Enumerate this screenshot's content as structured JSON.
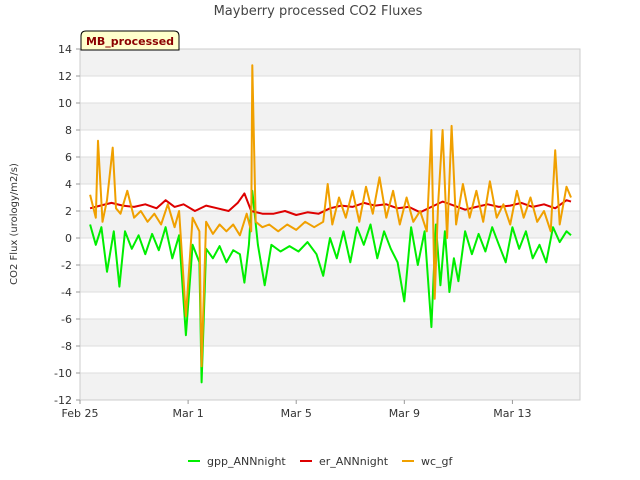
{
  "chart_data": {
    "type": "line",
    "title": "Mayberry processed CO2 Fluxes",
    "ylabel": "CO2 Flux (urology/m2/s)",
    "xlabel": "",
    "badge": "MB_processed",
    "ylim": [
      -12,
      14
    ],
    "yticks": [
      -12,
      -10,
      -8,
      -6,
      -4,
      -2,
      0,
      2,
      4,
      6,
      8,
      10,
      12,
      14
    ],
    "xlim": [
      "2021-02-25",
      "2021-03-15T12:00"
    ],
    "xticks": [
      {
        "label": "Feb 25",
        "date": "2021-02-25"
      },
      {
        "label": "Mar 1",
        "date": "2021-03-01"
      },
      {
        "label": "Mar 5",
        "date": "2021-03-05"
      },
      {
        "label": "Mar 9",
        "date": "2021-03-09"
      },
      {
        "label": "Mar 13",
        "date": "2021-03-13"
      }
    ],
    "grid": true,
    "legend_position": "bottom",
    "series": [
      {
        "name": "gpp_ANNnight",
        "color": "#00ee00",
        "points": [
          [
            "2021-02-25T09:00",
            1.0
          ],
          [
            "2021-02-25T14:00",
            -0.5
          ],
          [
            "2021-02-25T19:00",
            0.8
          ],
          [
            "2021-02-26T00:00",
            -2.5
          ],
          [
            "2021-02-26T06:00",
            0.5
          ],
          [
            "2021-02-26T11:00",
            -3.6
          ],
          [
            "2021-02-26T16:00",
            0.5
          ],
          [
            "2021-02-26T22:00",
            -0.8
          ],
          [
            "2021-02-27T04:00",
            0.2
          ],
          [
            "2021-02-27T10:00",
            -1.2
          ],
          [
            "2021-02-27T16:00",
            0.3
          ],
          [
            "2021-02-27T22:00",
            -0.9
          ],
          [
            "2021-02-28T04:00",
            0.8
          ],
          [
            "2021-02-28T10:00",
            -1.5
          ],
          [
            "2021-02-28T16:00",
            0.2
          ],
          [
            "2021-02-28T22:00",
            -7.2
          ],
          [
            "2021-03-01T04:00",
            -0.5
          ],
          [
            "2021-03-01T10:00",
            -1.8
          ],
          [
            "2021-03-01T12:00",
            -10.7
          ],
          [
            "2021-03-01T16:00",
            -0.8
          ],
          [
            "2021-03-01T22:00",
            -1.5
          ],
          [
            "2021-03-02T04:00",
            -0.6
          ],
          [
            "2021-03-02T10:00",
            -1.8
          ],
          [
            "2021-03-02T16:00",
            -0.9
          ],
          [
            "2021-03-02T22:00",
            -1.2
          ],
          [
            "2021-03-03T02:00",
            -3.3
          ],
          [
            "2021-03-03T06:00",
            -0.5
          ],
          [
            "2021-03-03T09:00",
            3.5
          ],
          [
            "2021-03-03T14:00",
            -0.5
          ],
          [
            "2021-03-03T20:00",
            -3.5
          ],
          [
            "2021-03-04T02:00",
            -0.5
          ],
          [
            "2021-03-04T10:00",
            -1.0
          ],
          [
            "2021-03-04T18:00",
            -0.6
          ],
          [
            "2021-03-05T02:00",
            -1.0
          ],
          [
            "2021-03-05T10:00",
            -0.3
          ],
          [
            "2021-03-05T18:00",
            -1.2
          ],
          [
            "2021-03-06T00:00",
            -2.8
          ],
          [
            "2021-03-06T06:00",
            0.0
          ],
          [
            "2021-03-06T12:00",
            -1.5
          ],
          [
            "2021-03-06T18:00",
            0.5
          ],
          [
            "2021-03-07T00:00",
            -1.8
          ],
          [
            "2021-03-07T06:00",
            0.8
          ],
          [
            "2021-03-07T12:00",
            -0.5
          ],
          [
            "2021-03-07T18:00",
            1.0
          ],
          [
            "2021-03-08T00:00",
            -1.5
          ],
          [
            "2021-03-08T06:00",
            0.5
          ],
          [
            "2021-03-08T12:00",
            -0.8
          ],
          [
            "2021-03-08T18:00",
            -1.8
          ],
          [
            "2021-03-09T00:00",
            -4.7
          ],
          [
            "2021-03-09T06:00",
            0.8
          ],
          [
            "2021-03-09T12:00",
            -2.0
          ],
          [
            "2021-03-09T18:00",
            0.5
          ],
          [
            "2021-03-10T00:00",
            -6.6
          ],
          [
            "2021-03-10T04:00",
            1.0
          ],
          [
            "2021-03-10T08:00",
            -3.5
          ],
          [
            "2021-03-10T12:00",
            0.5
          ],
          [
            "2021-03-10T16:00",
            -4.0
          ],
          [
            "2021-03-10T20:00",
            -1.5
          ],
          [
            "2021-03-11T00:00",
            -3.2
          ],
          [
            "2021-03-11T06:00",
            0.5
          ],
          [
            "2021-03-11T12:00",
            -1.2
          ],
          [
            "2021-03-11T18:00",
            0.3
          ],
          [
            "2021-03-12T00:00",
            -1.0
          ],
          [
            "2021-03-12T06:00",
            0.8
          ],
          [
            "2021-03-12T12:00",
            -0.5
          ],
          [
            "2021-03-12T18:00",
            -1.8
          ],
          [
            "2021-03-13T00:00",
            0.8
          ],
          [
            "2021-03-13T06:00",
            -0.8
          ],
          [
            "2021-03-13T12:00",
            0.5
          ],
          [
            "2021-03-13T18:00",
            -1.5
          ],
          [
            "2021-03-14T00:00",
            -0.5
          ],
          [
            "2021-03-14T06:00",
            -1.8
          ],
          [
            "2021-03-14T12:00",
            0.8
          ],
          [
            "2021-03-14T18:00",
            -0.3
          ],
          [
            "2021-03-15T00:00",
            0.5
          ],
          [
            "2021-03-15T04:00",
            0.2
          ]
        ]
      },
      {
        "name": "er_ANNnight",
        "color": "#dd0000",
        "points": [
          [
            "2021-02-25T09:00",
            2.2
          ],
          [
            "2021-02-25T18:00",
            2.4
          ],
          [
            "2021-02-26T04:00",
            2.6
          ],
          [
            "2021-02-26T14:00",
            2.4
          ],
          [
            "2021-02-27T00:00",
            2.3
          ],
          [
            "2021-02-27T10:00",
            2.5
          ],
          [
            "2021-02-27T20:00",
            2.2
          ],
          [
            "2021-02-28T04:00",
            2.8
          ],
          [
            "2021-02-28T12:00",
            2.3
          ],
          [
            "2021-02-28T20:00",
            2.5
          ],
          [
            "2021-03-01T06:00",
            2.0
          ],
          [
            "2021-03-01T16:00",
            2.4
          ],
          [
            "2021-03-02T02:00",
            2.2
          ],
          [
            "2021-03-02T12:00",
            2.0
          ],
          [
            "2021-03-02T20:00",
            2.6
          ],
          [
            "2021-03-03T02:00",
            3.3
          ],
          [
            "2021-03-03T08:00",
            2.0
          ],
          [
            "2021-03-03T18:00",
            1.8
          ],
          [
            "2021-03-04T04:00",
            1.8
          ],
          [
            "2021-03-04T14:00",
            2.0
          ],
          [
            "2021-03-05T00:00",
            1.7
          ],
          [
            "2021-03-05T10:00",
            1.9
          ],
          [
            "2021-03-05T20:00",
            1.8
          ],
          [
            "2021-03-06T06:00",
            2.2
          ],
          [
            "2021-03-06T16:00",
            2.4
          ],
          [
            "2021-03-07T02:00",
            2.3
          ],
          [
            "2021-03-07T12:00",
            2.6
          ],
          [
            "2021-03-07T22:00",
            2.4
          ],
          [
            "2021-03-08T08:00",
            2.5
          ],
          [
            "2021-03-08T18:00",
            2.2
          ],
          [
            "2021-03-09T04:00",
            2.3
          ],
          [
            "2021-03-09T14:00",
            1.9
          ],
          [
            "2021-03-10T00:00",
            2.3
          ],
          [
            "2021-03-10T10:00",
            2.7
          ],
          [
            "2021-03-10T20:00",
            2.4
          ],
          [
            "2021-03-11T06:00",
            2.1
          ],
          [
            "2021-03-11T16:00",
            2.3
          ],
          [
            "2021-03-12T02:00",
            2.5
          ],
          [
            "2021-03-12T12:00",
            2.3
          ],
          [
            "2021-03-12T22:00",
            2.4
          ],
          [
            "2021-03-13T08:00",
            2.6
          ],
          [
            "2021-03-13T18:00",
            2.3
          ],
          [
            "2021-03-14T04:00",
            2.5
          ],
          [
            "2021-03-14T14:00",
            2.2
          ],
          [
            "2021-03-15T00:00",
            2.8
          ],
          [
            "2021-03-15T04:00",
            2.7
          ]
        ]
      },
      {
        "name": "wc_gf",
        "color": "#f0a000",
        "points": [
          [
            "2021-02-25T09:00",
            3.2
          ],
          [
            "2021-02-25T14:00",
            1.5
          ],
          [
            "2021-02-25T16:00",
            7.2
          ],
          [
            "2021-02-25T20:00",
            1.2
          ],
          [
            "2021-02-26T00:00",
            2.8
          ],
          [
            "2021-02-26T05:00",
            6.7
          ],
          [
            "2021-02-26T08:00",
            2.2
          ],
          [
            "2021-02-26T12:00",
            1.8
          ],
          [
            "2021-02-26T18:00",
            3.5
          ],
          [
            "2021-02-27T00:00",
            1.5
          ],
          [
            "2021-02-27T06:00",
            2.0
          ],
          [
            "2021-02-27T12:00",
            1.2
          ],
          [
            "2021-02-27T18:00",
            1.8
          ],
          [
            "2021-02-28T00:00",
            1.0
          ],
          [
            "2021-02-28T06:00",
            2.5
          ],
          [
            "2021-02-28T12:00",
            0.8
          ],
          [
            "2021-02-28T16:00",
            2.0
          ],
          [
            "2021-02-28T22:00",
            -5.8
          ],
          [
            "2021-03-01T04:00",
            1.5
          ],
          [
            "2021-03-01T10:00",
            0.5
          ],
          [
            "2021-03-01T12:00",
            -9.5
          ],
          [
            "2021-03-01T16:00",
            1.2
          ],
          [
            "2021-03-01T22:00",
            0.3
          ],
          [
            "2021-03-02T04:00",
            1.0
          ],
          [
            "2021-03-02T10:00",
            0.5
          ],
          [
            "2021-03-02T16:00",
            1.0
          ],
          [
            "2021-03-02T22:00",
            0.2
          ],
          [
            "2021-03-03T04:00",
            1.8
          ],
          [
            "2021-03-03T08:00",
            0.5
          ],
          [
            "2021-03-03T09:00",
            12.8
          ],
          [
            "2021-03-03T12:00",
            1.2
          ],
          [
            "2021-03-03T18:00",
            0.8
          ],
          [
            "2021-03-04T00:00",
            1.0
          ],
          [
            "2021-03-04T08:00",
            0.5
          ],
          [
            "2021-03-04T16:00",
            1.0
          ],
          [
            "2021-03-05T00:00",
            0.6
          ],
          [
            "2021-03-05T08:00",
            1.2
          ],
          [
            "2021-03-05T16:00",
            0.8
          ],
          [
            "2021-03-06T00:00",
            1.2
          ],
          [
            "2021-03-06T04:00",
            4.0
          ],
          [
            "2021-03-06T08:00",
            1.0
          ],
          [
            "2021-03-06T14:00",
            3.0
          ],
          [
            "2021-03-06T20:00",
            1.5
          ],
          [
            "2021-03-07T02:00",
            3.5
          ],
          [
            "2021-03-07T08:00",
            1.2
          ],
          [
            "2021-03-07T14:00",
            3.8
          ],
          [
            "2021-03-07T20:00",
            1.8
          ],
          [
            "2021-03-08T02:00",
            4.5
          ],
          [
            "2021-03-08T08:00",
            1.5
          ],
          [
            "2021-03-08T14:00",
            3.5
          ],
          [
            "2021-03-08T20:00",
            1.0
          ],
          [
            "2021-03-09T02:00",
            3.0
          ],
          [
            "2021-03-09T08:00",
            1.2
          ],
          [
            "2021-03-09T14:00",
            2.0
          ],
          [
            "2021-03-09T20:00",
            0.5
          ],
          [
            "2021-03-10T00:00",
            8.0
          ],
          [
            "2021-03-10T03:00",
            -4.5
          ],
          [
            "2021-03-10T06:00",
            2.5
          ],
          [
            "2021-03-10T10:00",
            8.0
          ],
          [
            "2021-03-10T14:00",
            0.0
          ],
          [
            "2021-03-10T18:00",
            8.3
          ],
          [
            "2021-03-10T22:00",
            1.0
          ],
          [
            "2021-03-11T04:00",
            4.0
          ],
          [
            "2021-03-11T10:00",
            1.5
          ],
          [
            "2021-03-11T16:00",
            3.5
          ],
          [
            "2021-03-11T22:00",
            1.2
          ],
          [
            "2021-03-12T04:00",
            4.2
          ],
          [
            "2021-03-12T10:00",
            1.5
          ],
          [
            "2021-03-12T16:00",
            2.5
          ],
          [
            "2021-03-12T22:00",
            1.0
          ],
          [
            "2021-03-13T04:00",
            3.5
          ],
          [
            "2021-03-13T10:00",
            1.5
          ],
          [
            "2021-03-13T16:00",
            3.0
          ],
          [
            "2021-03-13T22:00",
            1.2
          ],
          [
            "2021-03-14T04:00",
            2.0
          ],
          [
            "2021-03-14T10:00",
            0.5
          ],
          [
            "2021-03-14T14:00",
            6.5
          ],
          [
            "2021-03-14T18:00",
            1.0
          ],
          [
            "2021-03-15T00:00",
            3.8
          ],
          [
            "2021-03-15T04:00",
            3.0
          ]
        ]
      }
    ]
  }
}
